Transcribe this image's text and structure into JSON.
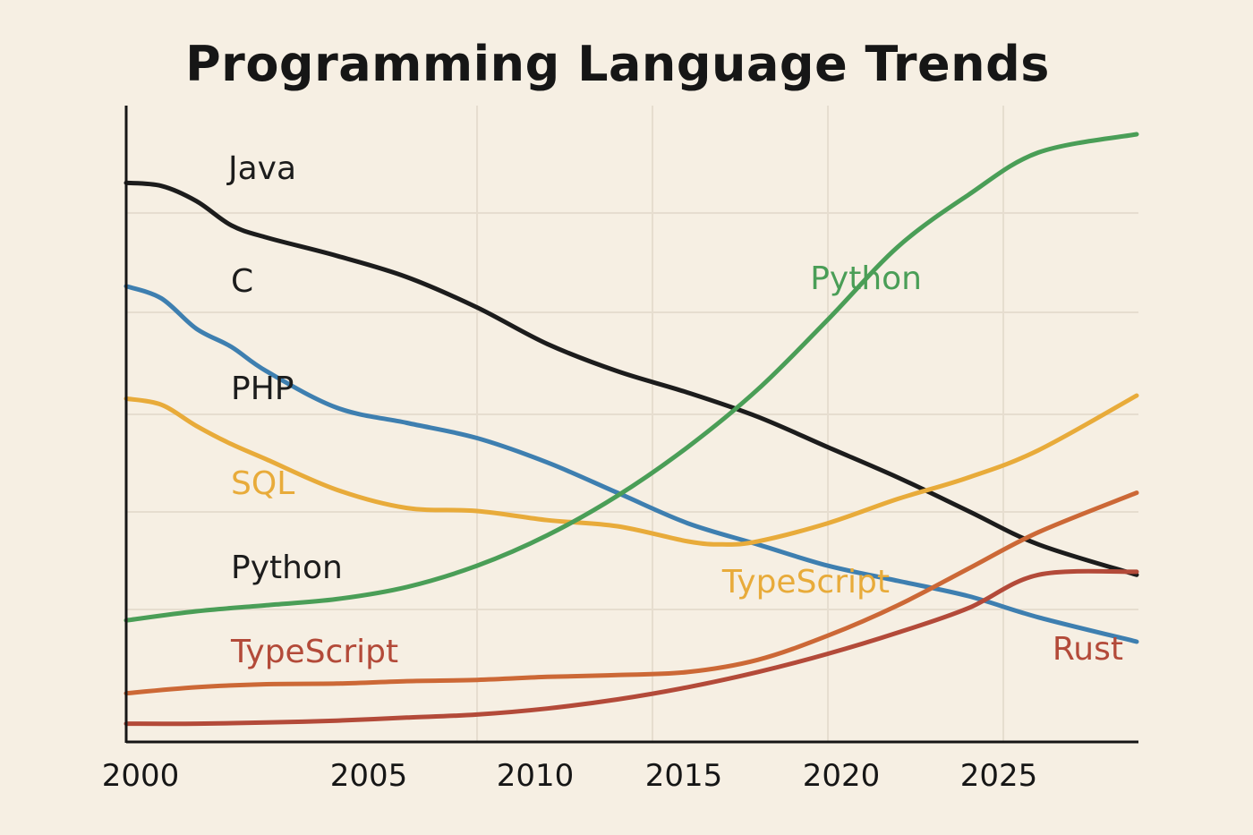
{
  "chart_data": {
    "type": "line",
    "title": "Programming Language Trends",
    "xlabel": "",
    "ylabel": "",
    "xlim": [
      2000,
      2028.8
    ],
    "ylim": [
      0,
      100
    ],
    "grid": true,
    "x_ticks": [
      2000,
      2005,
      2010,
      2015,
      2020,
      2025
    ],
    "series": [
      {
        "name": "Java",
        "color": "#1c1c1c",
        "x": [
          2000,
          2001,
          2002,
          2003,
          2004,
          2006,
          2008,
          2010,
          2012,
          2014,
          2016,
          2018,
          2020,
          2022,
          2024,
          2026,
          2028.8
        ],
        "values": [
          92,
          91.5,
          89,
          85,
          83,
          80,
          76.5,
          71.5,
          65.5,
          61,
          57.5,
          53.5,
          48.5,
          43.5,
          38,
          32.5,
          27.5
        ]
      },
      {
        "name": "C",
        "color": "#3e7fb0",
        "x": [
          2000,
          2001,
          2002,
          2003,
          2004,
          2006,
          2008,
          2010,
          2012,
          2014,
          2016,
          2018,
          2020,
          2022,
          2024,
          2026,
          2028.8
        ],
        "values": [
          75,
          73,
          68,
          65,
          61,
          55,
          52.5,
          50,
          46,
          41,
          36,
          32.5,
          29,
          26.5,
          24,
          20.5,
          16.5
        ]
      },
      {
        "name": "SQL",
        "color": "#e8ab3a",
        "x": [
          2000,
          2001,
          2002,
          2003,
          2004,
          2006,
          2008,
          2010,
          2012,
          2014,
          2016,
          2017,
          2018,
          2020,
          2022,
          2024,
          2026,
          2028.8
        ],
        "values": [
          56.5,
          55.5,
          52,
          49,
          46.5,
          41.5,
          38.5,
          38,
          36.5,
          35.5,
          33,
          32.5,
          33,
          36,
          40,
          43.5,
          48,
          57
        ]
      },
      {
        "name": "Python",
        "color": "#4a9e57",
        "x": [
          2000,
          2002,
          2004,
          2006,
          2008,
          2010,
          2012,
          2014,
          2016,
          2018,
          2020,
          2022,
          2024,
          2026,
          2028.8
        ],
        "values": [
          20,
          21.5,
          22.5,
          23.5,
          25.5,
          29,
          34,
          40.5,
          48.5,
          58,
          69.5,
          81.5,
          90,
          97,
          100
        ]
      },
      {
        "name": "TypeScript",
        "color": "#cc6836",
        "x": [
          2000,
          2002,
          2004,
          2006,
          2008,
          2010,
          2012,
          2014,
          2016,
          2018,
          2020,
          2022,
          2024,
          2026,
          2028.8
        ],
        "values": [
          8,
          9,
          9.5,
          9.6,
          10,
          10.2,
          10.7,
          11,
          11.5,
          13.5,
          17.5,
          22.5,
          28.5,
          34.5,
          41
        ]
      },
      {
        "name": "Rust",
        "color": "#b34a39",
        "x": [
          2000,
          2002,
          2004,
          2006,
          2008,
          2010,
          2012,
          2014,
          2016,
          2018,
          2020,
          2022,
          2024,
          2026,
          2028.8
        ],
        "values": [
          3,
          3,
          3.2,
          3.5,
          4,
          4.5,
          5.5,
          7,
          9,
          11.5,
          14.5,
          18,
          22,
          27.5,
          28
        ]
      }
    ],
    "annotations": [
      {
        "text": "Java",
        "color": "#1c1c1c"
      },
      {
        "text": "C",
        "color": "#1c1c1c"
      },
      {
        "text": "PHP",
        "color": "#1c1c1c"
      },
      {
        "text": "SQL",
        "color": "#e8ab3a"
      },
      {
        "text": "Python",
        "color": "#1c1c1c"
      },
      {
        "text": "TypeScript",
        "color": "#b34a39"
      },
      {
        "text": "Python",
        "color": "#4a9e57"
      },
      {
        "text": "TypeScript",
        "color": "#e8ab3a"
      },
      {
        "text": "Rust",
        "color": "#b34a39"
      }
    ]
  }
}
